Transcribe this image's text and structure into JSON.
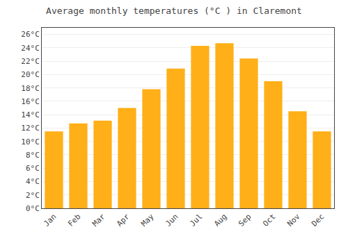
{
  "chart_data": {
    "type": "bar",
    "title": "Average monthly temperatures (°C ) in Claremont",
    "categories": [
      "Jan",
      "Feb",
      "Mar",
      "Apr",
      "May",
      "Jun",
      "Jul",
      "Aug",
      "Sep",
      "Oct",
      "Nov",
      "Dec"
    ],
    "values": [
      11.5,
      12.7,
      13.1,
      15.0,
      17.8,
      20.9,
      24.3,
      24.7,
      22.4,
      19.0,
      14.5,
      11.5
    ],
    "color": "#FFAF18",
    "ylim": [
      0,
      27
    ],
    "yticks": [
      {
        "value": 0,
        "label": "0°C"
      },
      {
        "value": 2,
        "label": "2°C"
      },
      {
        "value": 4,
        "label": "4°C"
      },
      {
        "value": 6,
        "label": "6°C"
      },
      {
        "value": 8,
        "label": "8°C"
      },
      {
        "value": 10,
        "label": "10°C"
      },
      {
        "value": 12,
        "label": "12°C"
      },
      {
        "value": 14,
        "label": "14°C"
      },
      {
        "value": 16,
        "label": "16°C"
      },
      {
        "value": 18,
        "label": "18°C"
      },
      {
        "value": 20,
        "label": "20°C"
      },
      {
        "value": 22,
        "label": "22°C"
      },
      {
        "value": 24,
        "label": "24°C"
      },
      {
        "value": 26,
        "label": "26°C"
      }
    ],
    "grid": true
  }
}
